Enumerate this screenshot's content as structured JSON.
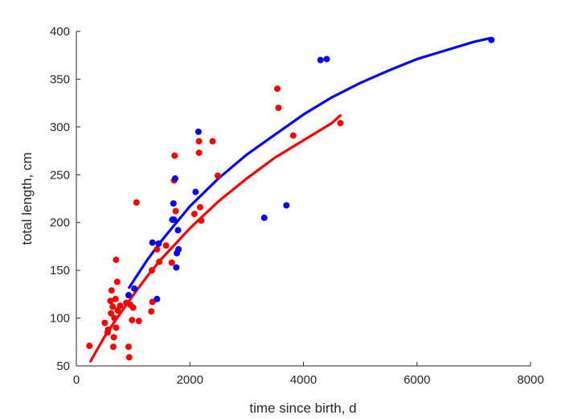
{
  "chart_data": {
    "type": "scatter",
    "title": "",
    "xlabel": "time since birth, d",
    "ylabel": "total length, cm",
    "xlim": [
      0,
      8000
    ],
    "ylim": [
      50,
      400
    ],
    "xticks": [
      0,
      2000,
      4000,
      6000,
      8000
    ],
    "yticks": [
      50,
      100,
      150,
      200,
      250,
      300,
      350,
      400
    ],
    "grid": false,
    "legend": null,
    "series": [
      {
        "kind": "points",
        "color": "#ff0000",
        "points": [
          [
            230,
            71
          ],
          [
            500,
            95
          ],
          [
            550,
            85
          ],
          [
            560,
            88
          ],
          [
            600,
            118
          ],
          [
            610,
            105
          ],
          [
            620,
            129
          ],
          [
            640,
            112
          ],
          [
            650,
            70
          ],
          [
            660,
            80
          ],
          [
            670,
            100
          ],
          [
            690,
            120
          ],
          [
            700,
            90
          ],
          [
            700,
            161
          ],
          [
            720,
            138
          ],
          [
            730,
            108
          ],
          [
            770,
            113
          ],
          [
            880,
            116
          ],
          [
            920,
            70
          ],
          [
            930,
            59
          ],
          [
            950,
            114
          ],
          [
            980,
            98
          ],
          [
            1000,
            111
          ],
          [
            1060,
            221
          ],
          [
            1100,
            97
          ],
          [
            1320,
            107
          ],
          [
            1330,
            150
          ],
          [
            1340,
            117
          ],
          [
            1420,
            172
          ],
          [
            1460,
            159
          ],
          [
            1580,
            176
          ],
          [
            1680,
            158
          ],
          [
            1720,
            244
          ],
          [
            1730,
            270
          ],
          [
            1750,
            212
          ],
          [
            2080,
            209
          ],
          [
            2160,
            285
          ],
          [
            2160,
            273
          ],
          [
            2180,
            216
          ],
          [
            2200,
            202
          ],
          [
            2400,
            285
          ],
          [
            2490,
            249
          ],
          [
            3540,
            340
          ],
          [
            3560,
            320
          ],
          [
            3820,
            291
          ],
          [
            4650,
            304
          ]
        ]
      },
      {
        "kind": "points",
        "color": "#0000ff",
        "points": [
          [
            920,
            124
          ],
          [
            1020,
            131
          ],
          [
            1340,
            179
          ],
          [
            1420,
            120
          ],
          [
            1450,
            178
          ],
          [
            1690,
            203
          ],
          [
            1710,
            220
          ],
          [
            1720,
            203
          ],
          [
            1740,
            246
          ],
          [
            1760,
            153
          ],
          [
            1770,
            168
          ],
          [
            1790,
            192
          ],
          [
            1800,
            172
          ],
          [
            2100,
            232
          ],
          [
            2150,
            295
          ],
          [
            3310,
            205
          ],
          [
            3700,
            218
          ],
          [
            4300,
            370
          ],
          [
            4410,
            371
          ],
          [
            7310,
            391
          ]
        ]
      },
      {
        "kind": "curve",
        "color": "#ff0000",
        "x": [
          250,
          500,
          750,
          1000,
          1250,
          1500,
          1750,
          2000,
          2250,
          2500,
          2750,
          3000,
          3250,
          3500,
          3750,
          4000,
          4250,
          4500,
          4650
        ],
        "y": [
          55,
          81,
          103,
          124,
          144,
          162,
          178,
          194,
          208,
          222,
          234,
          246,
          257,
          268,
          277,
          286,
          295,
          304,
          312
        ]
      },
      {
        "kind": "curve",
        "color": "#0000ff",
        "x": [
          930,
          1250,
          1500,
          1750,
          2000,
          2500,
          3000,
          3500,
          4000,
          4500,
          5000,
          5500,
          6000,
          6500,
          7000,
          7300
        ],
        "y": [
          132,
          161,
          181,
          199,
          217,
          246,
          271,
          292,
          313,
          331,
          346,
          359,
          371,
          380,
          389,
          393
        ]
      }
    ]
  }
}
